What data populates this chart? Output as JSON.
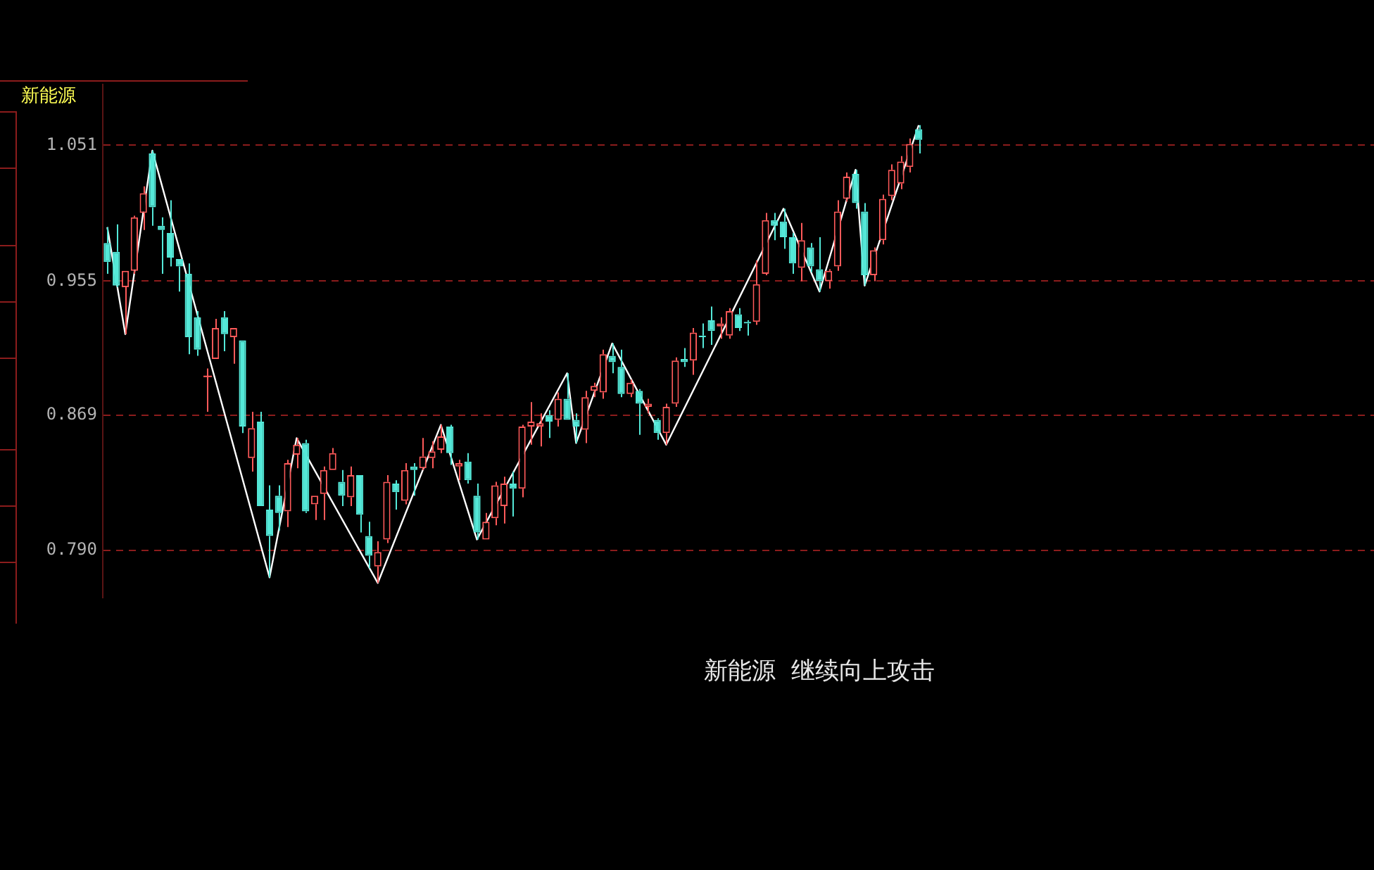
{
  "chart_data": {
    "type": "candlestick",
    "title": "新能源",
    "annotations": [
      "新能源  继续向上攻击"
    ],
    "categories": [
      null,
      null,
      null,
      null,
      null,
      null,
      null,
      null,
      null,
      null,
      null,
      null,
      null,
      null,
      null,
      null,
      null,
      null,
      null,
      null,
      null,
      null,
      null,
      null,
      null,
      null,
      null,
      null,
      null,
      null,
      null,
      null,
      null,
      null,
      null,
      null,
      null,
      null,
      null,
      null,
      null,
      null,
      null,
      null,
      null,
      null,
      null,
      null,
      null,
      null,
      null,
      null,
      null,
      null,
      null,
      null,
      null,
      null,
      null,
      null,
      null,
      null,
      null,
      null,
      null,
      null,
      null,
      null,
      null,
      null,
      null,
      null,
      null,
      null,
      null,
      null,
      null,
      null,
      null,
      null,
      null,
      null,
      null,
      null,
      null,
      null,
      null,
      null,
      null,
      null,
      null,
      null,
      null,
      null,
      null,
      null,
      null,
      null,
      null,
      null,
      null,
      null,
      null,
      null,
      null,
      null,
      null,
      null,
      null,
      null,
      null,
      null,
      null,
      null,
      null,
      null,
      null,
      null,
      null,
      null,
      null,
      null,
      null,
      null,
      null,
      null,
      null,
      null,
      null,
      null,
      null,
      null,
      null,
      null,
      null,
      null,
      null,
      null,
      null,
      null,
      null
    ],
    "ohlc": [
      [
        0.981,
        0.992,
        0.96,
        0.968
      ],
      [
        0.975,
        0.994,
        0.951,
        0.952
      ],
      [
        0.951,
        0.962,
        0.92,
        0.962
      ],
      [
        0.962,
        1.0,
        0.96,
        0.999
      ],
      [
        1.002,
        1.021,
        0.99,
        1.016
      ],
      [
        1.045,
        1.047,
        0.993,
        1.006
      ],
      [
        0.993,
        0.999,
        0.96,
        0.99
      ],
      [
        0.988,
        1.011,
        0.965,
        0.971
      ],
      [
        0.97,
        0.97,
        0.948,
        0.965
      ],
      [
        0.96,
        0.967,
        0.907,
        0.918
      ],
      [
        0.931,
        0.935,
        0.906,
        0.91
      ],
      [
        0.893,
        0.898,
        0.871,
        0.893
      ],
      [
        0.904,
        0.93,
        0.904,
        0.924
      ],
      [
        0.931,
        0.935,
        0.909,
        0.92
      ],
      [
        0.918,
        0.924,
        0.901,
        0.924
      ],
      [
        0.916,
        0.916,
        0.858,
        0.862
      ],
      [
        0.843,
        0.871,
        0.835,
        0.861
      ],
      [
        0.865,
        0.871,
        0.815,
        0.815
      ],
      [
        0.813,
        0.827,
        0.775,
        0.798
      ],
      [
        0.821,
        0.827,
        0.801,
        0.811
      ],
      [
        0.812,
        0.842,
        0.803,
        0.84
      ],
      [
        0.845,
        0.855,
        0.837,
        0.851
      ],
      [
        0.852,
        0.854,
        0.811,
        0.812
      ],
      [
        0.816,
        0.821,
        0.807,
        0.821
      ],
      [
        0.822,
        0.838,
        0.807,
        0.836
      ],
      [
        0.836,
        0.849,
        0.836,
        0.846
      ],
      [
        0.829,
        0.836,
        0.815,
        0.821
      ],
      [
        0.82,
        0.838,
        0.815,
        0.833
      ],
      [
        0.833,
        0.833,
        0.8,
        0.81
      ],
      [
        0.798,
        0.806,
        0.78,
        0.787
      ],
      [
        0.781,
        0.795,
        0.772,
        0.789
      ],
      [
        0.796,
        0.833,
        0.794,
        0.829
      ],
      [
        0.828,
        0.83,
        0.813,
        0.823
      ],
      [
        0.818,
        0.84,
        0.816,
        0.836
      ],
      [
        0.838,
        0.84,
        0.821,
        0.836
      ],
      [
        0.837,
        0.855,
        0.836,
        0.844
      ],
      [
        0.843,
        0.853,
        0.837,
        0.847
      ],
      [
        0.848,
        0.863,
        0.846,
        0.856
      ],
      [
        0.862,
        0.863,
        0.839,
        0.846
      ],
      [
        0.838,
        0.842,
        0.83,
        0.84
      ],
      [
        0.841,
        0.846,
        0.828,
        0.83
      ],
      [
        0.821,
        0.828,
        0.796,
        0.8
      ],
      [
        0.796,
        0.811,
        0.796,
        0.806
      ],
      [
        0.808,
        0.829,
        0.804,
        0.827
      ],
      [
        0.815,
        0.832,
        0.805,
        0.828
      ],
      [
        0.828,
        0.835,
        0.809,
        0.825
      ],
      [
        0.825,
        0.863,
        0.82,
        0.862
      ],
      [
        0.862,
        0.877,
        0.851,
        0.865
      ],
      [
        0.862,
        0.87,
        0.85,
        0.864
      ],
      [
        0.869,
        0.872,
        0.855,
        0.865
      ],
      [
        0.866,
        0.883,
        0.862,
        0.879
      ],
      [
        0.879,
        0.895,
        0.866,
        0.866
      ],
      [
        0.866,
        0.87,
        0.852,
        0.862
      ],
      [
        0.86,
        0.884,
        0.852,
        0.88
      ],
      [
        0.884,
        0.889,
        0.88,
        0.887
      ],
      [
        0.883,
        0.91,
        0.879,
        0.907
      ],
      [
        0.906,
        0.914,
        0.895,
        0.902
      ],
      [
        0.899,
        0.91,
        0.88,
        0.882
      ],
      [
        0.882,
        0.891,
        0.88,
        0.889
      ],
      [
        0.884,
        0.885,
        0.857,
        0.876
      ],
      [
        0.874,
        0.879,
        0.87,
        0.876
      ],
      [
        0.866,
        0.867,
        0.854,
        0.858
      ],
      [
        0.858,
        0.876,
        0.851,
        0.874
      ],
      [
        0.876,
        0.905,
        0.874,
        0.903
      ],
      [
        0.904,
        0.911,
        0.899,
        0.902
      ],
      [
        0.903,
        0.924,
        0.894,
        0.921
      ],
      [
        0.919,
        0.927,
        0.911,
        0.918
      ],
      [
        0.929,
        0.938,
        0.913,
        0.922
      ],
      [
        0.925,
        0.931,
        0.917,
        0.927
      ],
      [
        0.919,
        0.937,
        0.917,
        0.935
      ],
      [
        0.933,
        0.937,
        0.922,
        0.924
      ],
      [
        0.928,
        0.929,
        0.919,
        0.927
      ],
      [
        0.928,
        0.969,
        0.926,
        0.953
      ],
      [
        0.96,
        1.002,
        0.959,
        0.997
      ],
      [
        0.997,
        1.002,
        0.983,
        0.993
      ],
      [
        0.996,
        1.005,
        0.977,
        0.985
      ],
      [
        0.985,
        0.988,
        0.96,
        0.967
      ],
      [
        0.964,
        0.995,
        0.955,
        0.983
      ],
      [
        0.978,
        0.981,
        0.961,
        0.965
      ],
      [
        0.963,
        0.985,
        0.948,
        0.955
      ],
      [
        0.955,
        0.963,
        0.95,
        0.962
      ],
      [
        0.965,
        1.011,
        0.962,
        1.003
      ],
      [
        1.012,
        1.031,
        1.01,
        1.028
      ],
      [
        1.03,
        1.033,
        1.005,
        1.009
      ],
      [
        1.003,
        1.009,
        0.952,
        0.959
      ],
      [
        0.959,
        0.978,
        0.955,
        0.976
      ],
      [
        0.983,
        1.015,
        0.98,
        1.012
      ],
      [
        1.014,
        1.037,
        1.011,
        1.033
      ],
      [
        1.023,
        1.043,
        1.019,
        1.039
      ],
      [
        1.035,
        1.056,
        1.031,
        1.052
      ],
      [
        1.063,
        1.066,
        1.045,
        1.055
      ],
      null,
      null,
      null,
      null,
      null,
      null,
      null,
      null,
      null,
      null,
      null,
      null,
      null,
      null,
      null,
      null,
      null,
      null,
      null,
      null,
      null,
      null,
      null,
      null,
      null,
      null,
      null,
      null,
      null,
      null,
      null,
      null,
      null,
      null,
      null,
      null,
      null,
      null,
      null,
      null,
      null,
      null,
      null,
      null,
      null,
      null,
      null,
      null,
      null,
      null
    ],
    "series": [
      {
        "type": "line",
        "color": "#ffffff",
        "values": [
          0.992,
          null,
          0.92,
          null,
          null,
          1.047,
          null,
          null,
          null,
          null,
          null,
          null,
          null,
          null,
          null,
          null,
          null,
          null,
          0.775,
          null,
          null,
          0.855,
          null,
          null,
          null,
          null,
          null,
          null,
          null,
          null,
          0.772,
          null,
          null,
          null,
          null,
          null,
          null,
          0.863,
          null,
          null,
          null,
          0.796,
          null,
          null,
          null,
          null,
          null,
          null,
          null,
          null,
          null,
          0.895,
          0.852,
          null,
          null,
          null,
          0.914,
          null,
          null,
          null,
          null,
          null,
          0.851,
          null,
          null,
          null,
          null,
          null,
          null,
          null,
          null,
          null,
          null,
          null,
          null,
          1.005,
          null,
          null,
          null,
          0.948,
          null,
          null,
          null,
          1.033,
          0.952,
          null,
          null,
          null,
          null,
          null,
          1.066,
          null,
          null,
          null,
          null,
          null,
          null,
          null,
          null,
          null,
          null,
          null,
          null,
          null,
          null,
          null,
          null,
          null,
          null,
          null,
          null,
          null,
          null,
          null,
          null,
          null,
          null,
          null,
          null,
          null,
          null,
          null,
          null,
          null,
          null,
          null,
          null,
          null,
          null,
          null,
          null,
          null,
          null,
          null,
          null,
          null,
          null,
          null,
          null,
          null,
          null
        ]
      }
    ],
    "log": true,
    "ylim": [
      0.764,
      1.097
    ],
    "yticks": [
      1.051,
      0.955,
      0.869,
      {
        "value": 0.79,
        "label": "0.790"
      }
    ],
    "grid": "y",
    "legend": false
  }
}
